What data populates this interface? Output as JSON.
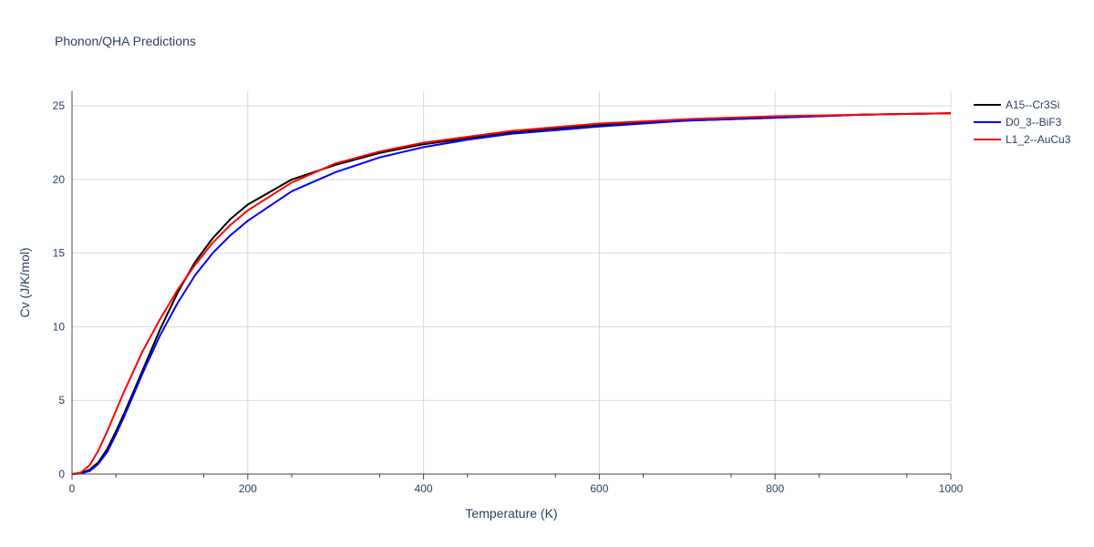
{
  "chart_data": {
    "type": "line",
    "title": "Phonon/QHA Predictions",
    "xlabel": "Temperature (K)",
    "ylabel": "Cv (J/K/mol)",
    "xlim": [
      0,
      1000
    ],
    "ylim": [
      0,
      26
    ],
    "xticks": [
      0,
      200,
      400,
      600,
      800,
      1000
    ],
    "yticks": [
      0,
      5,
      10,
      15,
      20,
      25
    ],
    "grid": true,
    "legend_position": "top-right",
    "series": [
      {
        "name": "A15--Cr3Si",
        "color": "#000000",
        "x": [
          0,
          10,
          20,
          30,
          40,
          50,
          60,
          70,
          80,
          100,
          120,
          140,
          160,
          180,
          200,
          250,
          300,
          350,
          400,
          450,
          500,
          600,
          700,
          800,
          900,
          1000
        ],
        "y": [
          0,
          0.05,
          0.3,
          0.8,
          1.7,
          2.9,
          4.2,
          5.6,
          7.0,
          9.8,
          12.3,
          14.4,
          16.0,
          17.3,
          18.3,
          20.0,
          21.0,
          21.8,
          22.4,
          22.8,
          23.2,
          23.7,
          24.0,
          24.2,
          24.4,
          24.5
        ]
      },
      {
        "name": "D0_3--BiF3",
        "color": "#0000ff",
        "x": [
          0,
          10,
          20,
          30,
          40,
          50,
          60,
          70,
          80,
          100,
          120,
          140,
          160,
          180,
          200,
          250,
          300,
          350,
          400,
          450,
          500,
          600,
          700,
          800,
          900,
          1000
        ],
        "y": [
          0,
          0.05,
          0.2,
          0.7,
          1.5,
          2.7,
          4.0,
          5.4,
          6.8,
          9.4,
          11.6,
          13.5,
          15.0,
          16.2,
          17.2,
          19.2,
          20.5,
          21.5,
          22.2,
          22.7,
          23.1,
          23.6,
          24.0,
          24.2,
          24.4,
          24.5
        ]
      },
      {
        "name": "L1_2--AuCu3",
        "color": "#ff0000",
        "x": [
          0,
          10,
          20,
          30,
          40,
          50,
          60,
          70,
          80,
          100,
          120,
          140,
          160,
          180,
          200,
          250,
          300,
          350,
          400,
          450,
          500,
          600,
          700,
          800,
          900,
          1000
        ],
        "y": [
          0,
          0.1,
          0.6,
          1.6,
          2.9,
          4.3,
          5.7,
          7.0,
          8.3,
          10.5,
          12.5,
          14.2,
          15.7,
          16.9,
          17.9,
          19.8,
          21.1,
          21.9,
          22.5,
          22.9,
          23.3,
          23.8,
          24.1,
          24.3,
          24.4,
          24.5
        ]
      }
    ]
  }
}
